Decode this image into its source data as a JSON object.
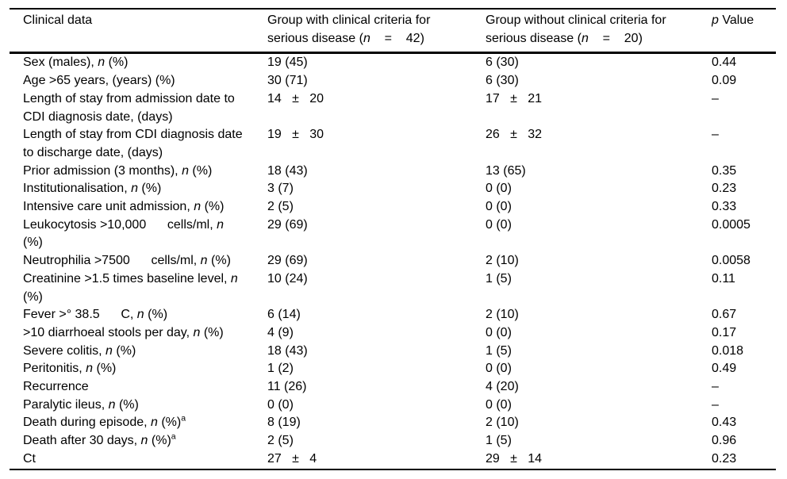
{
  "colors": {
    "text": "#000000",
    "background": "#ffffff",
    "rule": "#000000"
  },
  "table": {
    "columns": [
      {
        "label": "Clinical data"
      },
      {
        "label": "Group with clinical criteria for\nserious disease (*n*    =    42)"
      },
      {
        "label": "Group without clinical criteria for\nserious disease (*n*    =    20)"
      },
      {
        "label": "*p* Value"
      }
    ],
    "rows": [
      {
        "label": "Sex (males), *n* (%)",
        "g1": "19 (45)",
        "g2": "6 (30)",
        "p": "0.44"
      },
      {
        "label": "Age >65 years, (years) (%)",
        "g1": "30 (71)",
        "g2": "6 (30)",
        "p": "0.09"
      },
      {
        "label": "Length of stay from admission date to\nCDI diagnosis date, (days)",
        "g1": "14   ±   20",
        "g2": "17   ±   21",
        "p": "–"
      },
      {
        "label": "Length of stay from CDI diagnosis date\nto discharge date, (days)",
        "g1": "19   ±   30",
        "g2": "26   ±   32",
        "p": "–"
      },
      {
        "label": "Prior admission (3 months), *n* (%)",
        "g1": "18 (43)",
        "g2": "13 (65)",
        "p": "0.35"
      },
      {
        "label": "Institutionalisation, *n* (%)",
        "g1": "3 (7)",
        "g2": "0 (0)",
        "p": "0.23"
      },
      {
        "label": "Intensive care unit admission, *n* (%)",
        "g1": "2 (5)",
        "g2": "0 (0)",
        "p": "0.33"
      },
      {
        "label": "Leukocytosis >10,000      cells/ml, *n*\n(%)",
        "g1": "29 (69)",
        "g2": "0 (0)",
        "p": "0.0005"
      },
      {
        "label": "Neutrophilia >7500      cells/ml, *n* (%)",
        "g1": "29 (69)",
        "g2": "2 (10)",
        "p": "0.0058"
      },
      {
        "label": "Creatinine >1.5 times baseline level, *n*\n(%)",
        "g1": "10 (24)",
        "g2": "1 (5)",
        "p": "0.11"
      },
      {
        "label": "Fever >° 38.5      C, *n* (%)",
        "g1": "6 (14)",
        "g2": "2 (10)",
        "p": "0.67"
      },
      {
        "label": ">10 diarrhoeal stools per day, *n* (%)",
        "g1": "4 (9)",
        "g2": "0 (0)",
        "p": "0.17"
      },
      {
        "label": "Severe colitis, *n* (%)",
        "g1": "18 (43)",
        "g2": "1 (5)",
        "p": "0.018"
      },
      {
        "label": "Peritonitis, *n* (%)",
        "g1": "1 (2)",
        "g2": "0 (0)",
        "p": "0.49"
      },
      {
        "label": "Recurrence",
        "g1": "11 (26)",
        "g2": "4 (20)",
        "p": "–"
      },
      {
        "label": "Paralytic ileus, *n* (%)",
        "g1": "0 (0)",
        "g2": "0 (0)",
        "p": "–"
      },
      {
        "label": "Death during episode, *n* (%)^a",
        "g1": "8 (19)",
        "g2": "2 (10)",
        "p": "0.43"
      },
      {
        "label": "Death after 30 days, *n* (%)^a",
        "g1": "2 (5)",
        "g2": "1 (5)",
        "p": "0.96"
      },
      {
        "label": "Ct",
        "g1": "27   ±   4",
        "g2": "29   ±   14",
        "p": "0.23"
      }
    ]
  }
}
